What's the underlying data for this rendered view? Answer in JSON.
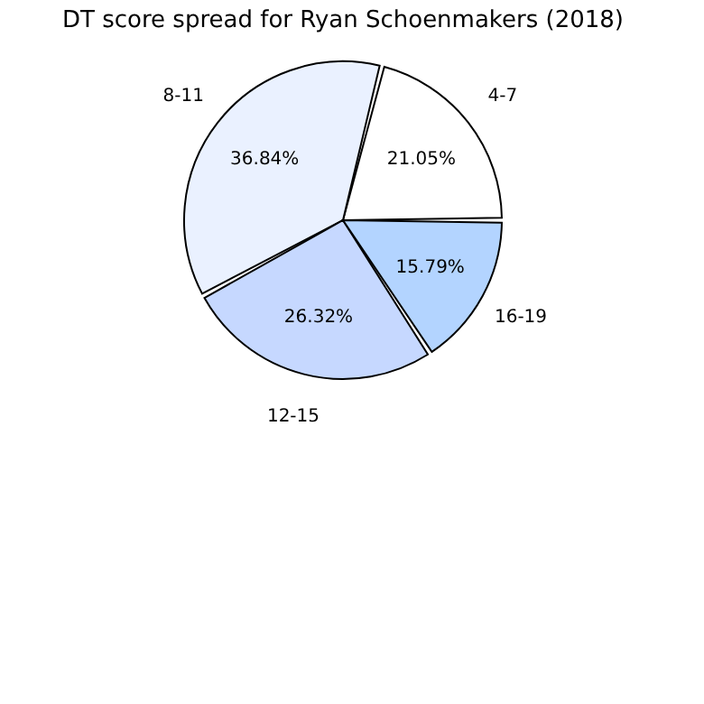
{
  "chart_data": {
    "type": "pie",
    "title": "DT score spread for Ryan Schoenmakers (2018)",
    "categories": [
      "4-7",
      "8-11",
      "12-15",
      "16-19"
    ],
    "values": [
      21.05,
      36.84,
      26.32,
      15.79
    ],
    "value_labels": [
      "21.05%",
      "36.84%",
      "26.32%",
      "15.79%"
    ],
    "colors": [
      "#ffffff",
      "#eaf1ff",
      "#c6d8ff",
      "#b3d4ff"
    ]
  }
}
